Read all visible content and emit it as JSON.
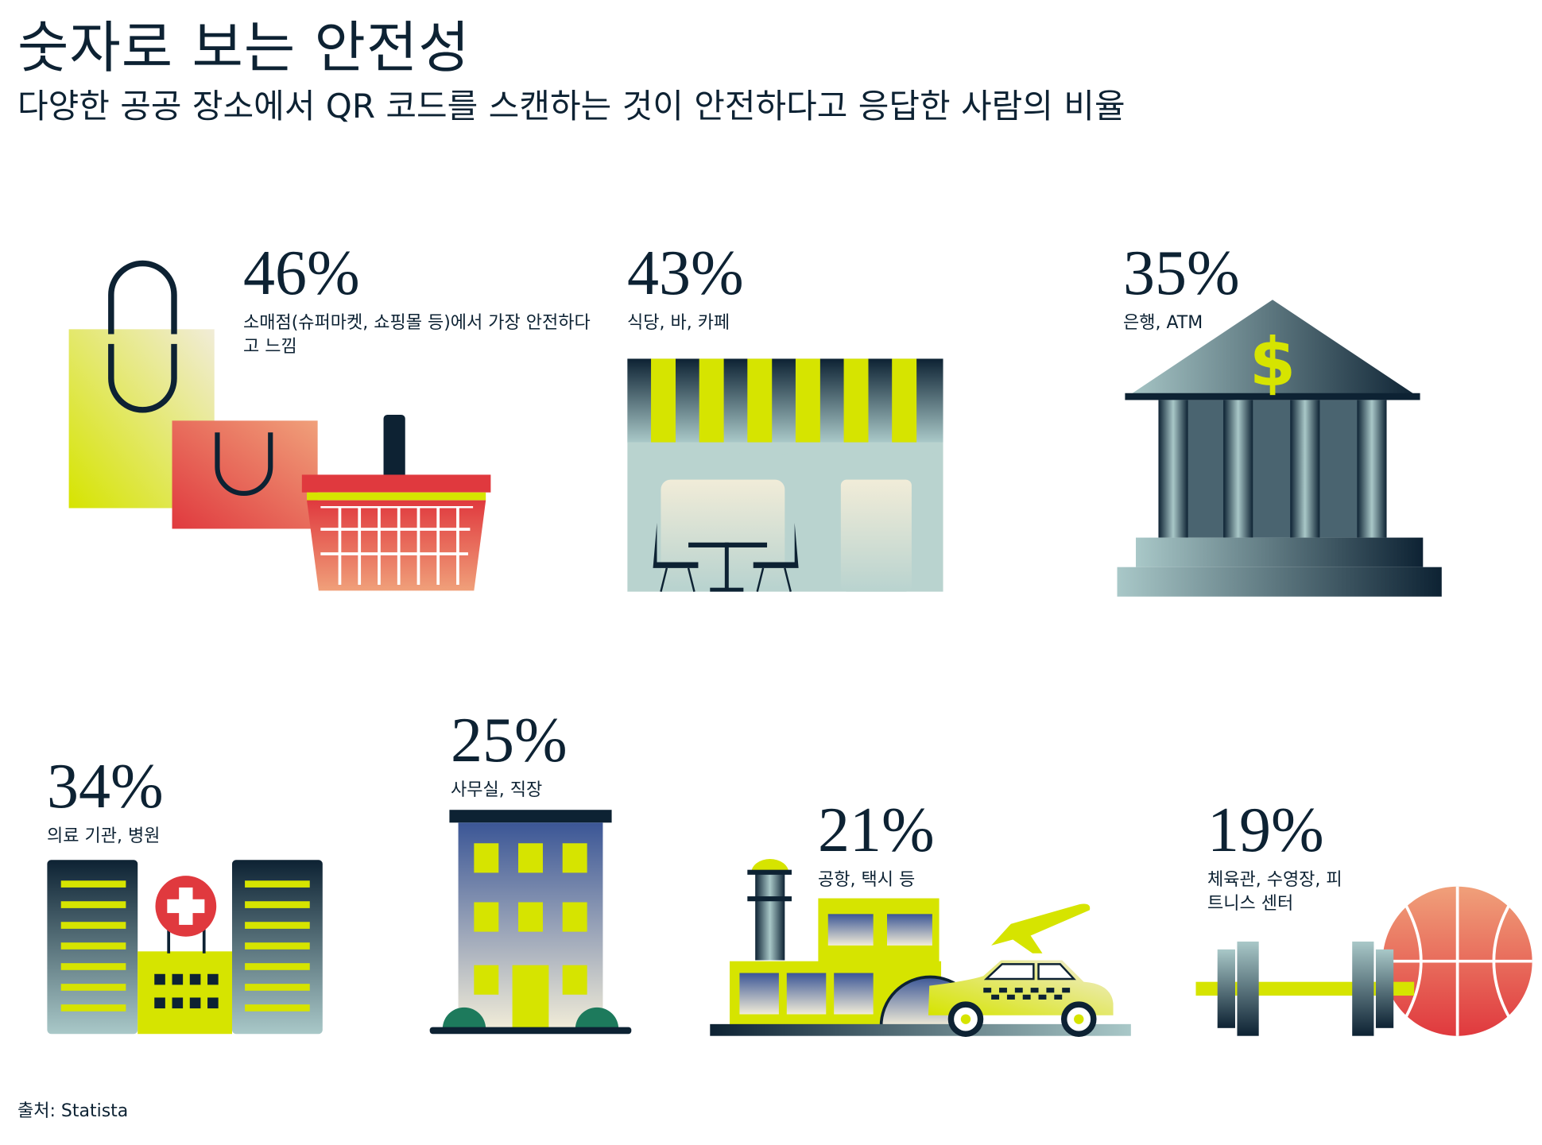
{
  "header": {
    "title": "숫자로 보는 안전성",
    "subtitle": "다양한 공공 장소에서 QR 코드를 스캔하는 것이 안전하다고 응답한 사람의 비율"
  },
  "stats": [
    {
      "percent": "46%",
      "value": 46,
      "label": "소매점(슈퍼마켓, 쇼핑몰 등)에서 가장 안전하다고 느낌",
      "icon": "shopping-bags-basket-icon"
    },
    {
      "percent": "43%",
      "value": 43,
      "label": "식당, 바, 카페",
      "icon": "cafe-storefront-icon"
    },
    {
      "percent": "35%",
      "value": 35,
      "label": "은행, ATM",
      "icon": "bank-icon"
    },
    {
      "percent": "34%",
      "value": 34,
      "label": "의료 기관, 병원",
      "icon": "hospital-icon"
    },
    {
      "percent": "25%",
      "value": 25,
      "label": "사무실, 직장",
      "icon": "office-building-icon"
    },
    {
      "percent": "21%",
      "value": 21,
      "label": "공항, 택시 등",
      "icon": "airport-taxi-icon"
    },
    {
      "percent": "19%",
      "value": 19,
      "label": "체육관, 수영장, 피트니스 센터",
      "icon": "dumbbell-basketball-icon"
    }
  ],
  "footer": {
    "source": "출처: Statista"
  },
  "colors": {
    "text": "#0d2233",
    "lime": "#d6e400",
    "red": "#e0393e",
    "teal": "#a9c8c8"
  }
}
